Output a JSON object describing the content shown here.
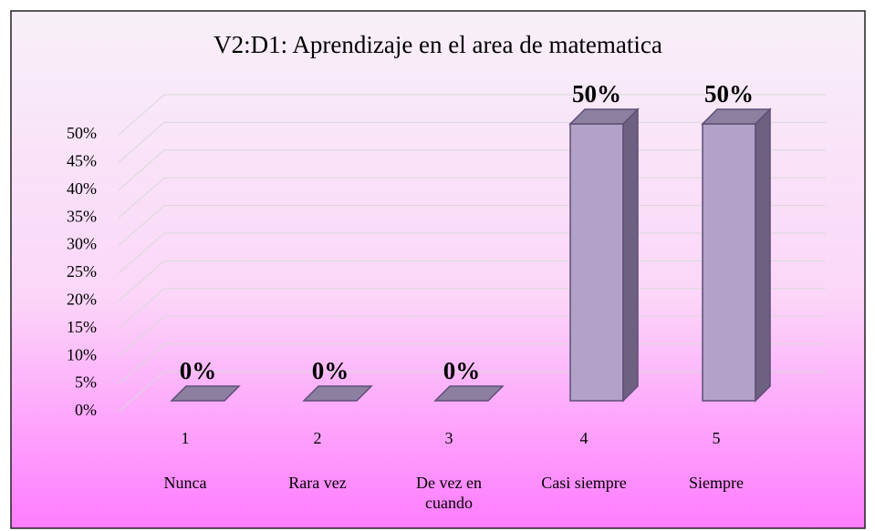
{
  "chart_data": {
    "type": "bar3d",
    "title": "V2:D1: Aprendizaje en el area de matematica",
    "categories": [
      "1",
      "2",
      "3",
      "4",
      "5"
    ],
    "category_labels": [
      "Nunca",
      "Rara vez",
      "De vez en cuando",
      "Casi siempre",
      "Siempre"
    ],
    "values": [
      0,
      0,
      0,
      50,
      50
    ],
    "value_labels": [
      "0%",
      "0%",
      "0%",
      "50%",
      "50%"
    ],
    "ylim": [
      0,
      50
    ],
    "yticks": [
      {
        "value": 0,
        "label": "0%"
      },
      {
        "value": 5,
        "label": "5%"
      },
      {
        "value": 10,
        "label": "10%"
      },
      {
        "value": 15,
        "label": "15%"
      },
      {
        "value": 20,
        "label": "20%"
      },
      {
        "value": 25,
        "label": "25%"
      },
      {
        "value": 30,
        "label": "30%"
      },
      {
        "value": 35,
        "label": "35%"
      },
      {
        "value": 40,
        "label": "40%"
      },
      {
        "value": 45,
        "label": "45%"
      },
      {
        "value": 50,
        "label": "50%"
      }
    ],
    "grid": true,
    "color": "#b3a2c7"
  }
}
